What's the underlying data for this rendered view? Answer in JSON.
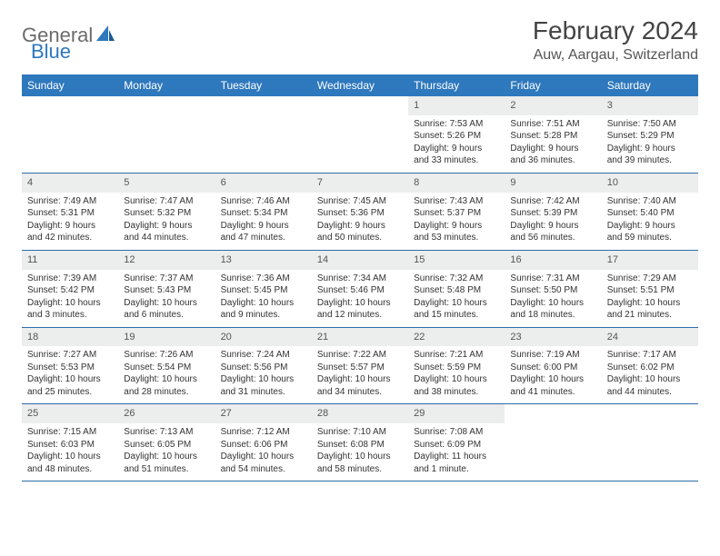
{
  "brand": {
    "part1": "General",
    "part2": "Blue"
  },
  "title": "February 2024",
  "location": "Auw, Aargau, Switzerland",
  "colors": {
    "header_bg": "#2e78bd",
    "header_text": "#ffffff",
    "daynum_bg": "#eceded",
    "border": "#2e6ca8",
    "brand_gray": "#6b6b6b",
    "brand_blue": "#2e78bd"
  },
  "dayNames": [
    "Sunday",
    "Monday",
    "Tuesday",
    "Wednesday",
    "Thursday",
    "Friday",
    "Saturday"
  ],
  "startOffset": 4,
  "days": [
    {
      "n": 1,
      "sunrise": "7:53 AM",
      "sunset": "5:26 PM",
      "daylight": "9 hours and 33 minutes."
    },
    {
      "n": 2,
      "sunrise": "7:51 AM",
      "sunset": "5:28 PM",
      "daylight": "9 hours and 36 minutes."
    },
    {
      "n": 3,
      "sunrise": "7:50 AM",
      "sunset": "5:29 PM",
      "daylight": "9 hours and 39 minutes."
    },
    {
      "n": 4,
      "sunrise": "7:49 AM",
      "sunset": "5:31 PM",
      "daylight": "9 hours and 42 minutes."
    },
    {
      "n": 5,
      "sunrise": "7:47 AM",
      "sunset": "5:32 PM",
      "daylight": "9 hours and 44 minutes."
    },
    {
      "n": 6,
      "sunrise": "7:46 AM",
      "sunset": "5:34 PM",
      "daylight": "9 hours and 47 minutes."
    },
    {
      "n": 7,
      "sunrise": "7:45 AM",
      "sunset": "5:36 PM",
      "daylight": "9 hours and 50 minutes."
    },
    {
      "n": 8,
      "sunrise": "7:43 AM",
      "sunset": "5:37 PM",
      "daylight": "9 hours and 53 minutes."
    },
    {
      "n": 9,
      "sunrise": "7:42 AM",
      "sunset": "5:39 PM",
      "daylight": "9 hours and 56 minutes."
    },
    {
      "n": 10,
      "sunrise": "7:40 AM",
      "sunset": "5:40 PM",
      "daylight": "9 hours and 59 minutes."
    },
    {
      "n": 11,
      "sunrise": "7:39 AM",
      "sunset": "5:42 PM",
      "daylight": "10 hours and 3 minutes."
    },
    {
      "n": 12,
      "sunrise": "7:37 AM",
      "sunset": "5:43 PM",
      "daylight": "10 hours and 6 minutes."
    },
    {
      "n": 13,
      "sunrise": "7:36 AM",
      "sunset": "5:45 PM",
      "daylight": "10 hours and 9 minutes."
    },
    {
      "n": 14,
      "sunrise": "7:34 AM",
      "sunset": "5:46 PM",
      "daylight": "10 hours and 12 minutes."
    },
    {
      "n": 15,
      "sunrise": "7:32 AM",
      "sunset": "5:48 PM",
      "daylight": "10 hours and 15 minutes."
    },
    {
      "n": 16,
      "sunrise": "7:31 AM",
      "sunset": "5:50 PM",
      "daylight": "10 hours and 18 minutes."
    },
    {
      "n": 17,
      "sunrise": "7:29 AM",
      "sunset": "5:51 PM",
      "daylight": "10 hours and 21 minutes."
    },
    {
      "n": 18,
      "sunrise": "7:27 AM",
      "sunset": "5:53 PM",
      "daylight": "10 hours and 25 minutes."
    },
    {
      "n": 19,
      "sunrise": "7:26 AM",
      "sunset": "5:54 PM",
      "daylight": "10 hours and 28 minutes."
    },
    {
      "n": 20,
      "sunrise": "7:24 AM",
      "sunset": "5:56 PM",
      "daylight": "10 hours and 31 minutes."
    },
    {
      "n": 21,
      "sunrise": "7:22 AM",
      "sunset": "5:57 PM",
      "daylight": "10 hours and 34 minutes."
    },
    {
      "n": 22,
      "sunrise": "7:21 AM",
      "sunset": "5:59 PM",
      "daylight": "10 hours and 38 minutes."
    },
    {
      "n": 23,
      "sunrise": "7:19 AM",
      "sunset": "6:00 PM",
      "daylight": "10 hours and 41 minutes."
    },
    {
      "n": 24,
      "sunrise": "7:17 AM",
      "sunset": "6:02 PM",
      "daylight": "10 hours and 44 minutes."
    },
    {
      "n": 25,
      "sunrise": "7:15 AM",
      "sunset": "6:03 PM",
      "daylight": "10 hours and 48 minutes."
    },
    {
      "n": 26,
      "sunrise": "7:13 AM",
      "sunset": "6:05 PM",
      "daylight": "10 hours and 51 minutes."
    },
    {
      "n": 27,
      "sunrise": "7:12 AM",
      "sunset": "6:06 PM",
      "daylight": "10 hours and 54 minutes."
    },
    {
      "n": 28,
      "sunrise": "7:10 AM",
      "sunset": "6:08 PM",
      "daylight": "10 hours and 58 minutes."
    },
    {
      "n": 29,
      "sunrise": "7:08 AM",
      "sunset": "6:09 PM",
      "daylight": "11 hours and 1 minute."
    }
  ],
  "labels": {
    "sunrise": "Sunrise:",
    "sunset": "Sunset:",
    "daylight": "Daylight:"
  }
}
